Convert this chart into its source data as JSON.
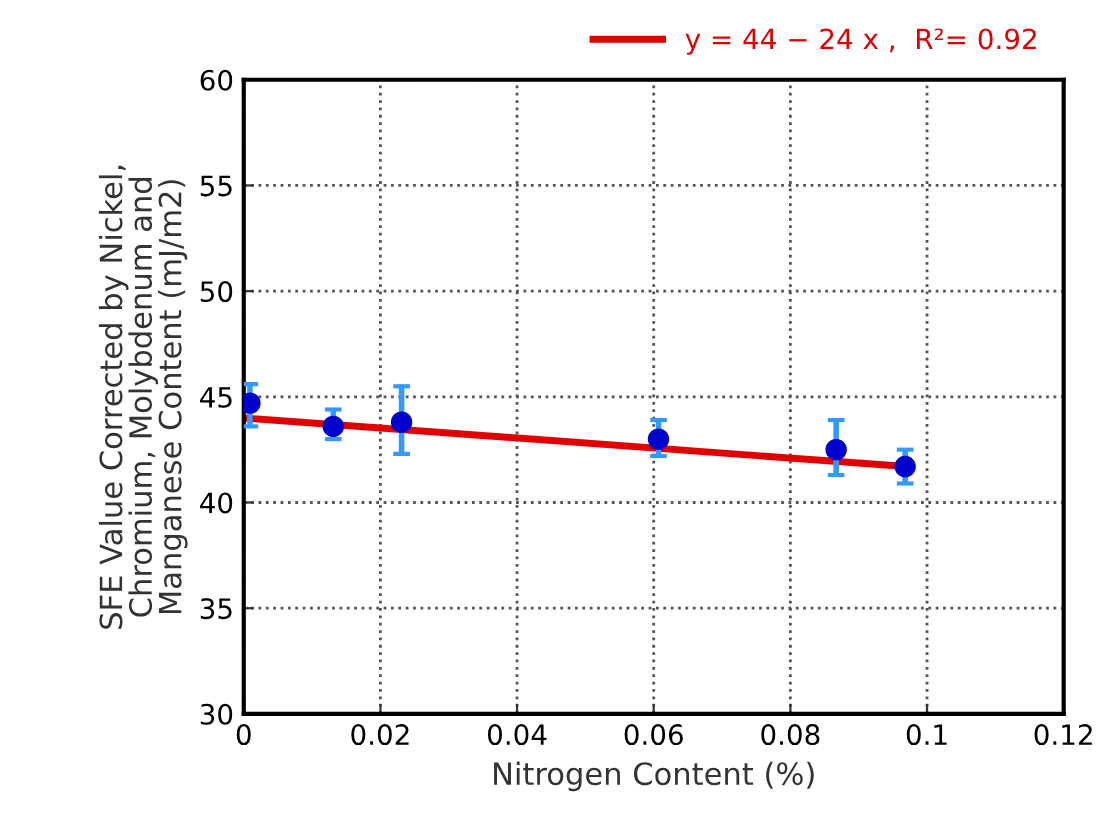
{
  "chart_data": {
    "type": "scatter",
    "xlabel": "Nitrogen Content (%)",
    "ylabel": "SFE Value Corrected by Nickel,\nChromium, Molybdenum and\nManganese Content (mJ/m2)",
    "series": [
      {
        "color": "#0000cc",
        "x": [
          0.0009,
          0.0131,
          0.0231,
          0.0607,
          0.0867,
          0.0968
        ],
        "values": [
          44.7,
          43.6,
          43.8,
          43.0,
          42.5,
          41.7
        ],
        "errors": [
          [
            43.6,
            45.6
          ],
          [
            43.0,
            44.4
          ],
          [
            42.3,
            45.5
          ],
          [
            42.2,
            43.9
          ],
          [
            41.3,
            43.9
          ],
          [
            40.9,
            42.5
          ]
        ],
        "marker": "circle"
      },
      {
        "type": "line",
        "name": "y = 44 − 24 x ,  R²= 0.92",
        "color": "#e00000",
        "x": [
          0,
          0.097
        ],
        "values": [
          44.0,
          41.7
        ],
        "line_style": "solid",
        "marker": "none"
      }
    ],
    "xlim": [
      0,
      0.12
    ],
    "xticks": [
      0,
      0.02,
      0.04,
      0.06,
      0.08,
      0.1,
      0.12
    ],
    "ylim": [
      30,
      60
    ],
    "yticks": [
      30,
      35,
      40,
      45,
      50,
      55,
      60
    ],
    "grid": true,
    "legend": "top right"
  }
}
